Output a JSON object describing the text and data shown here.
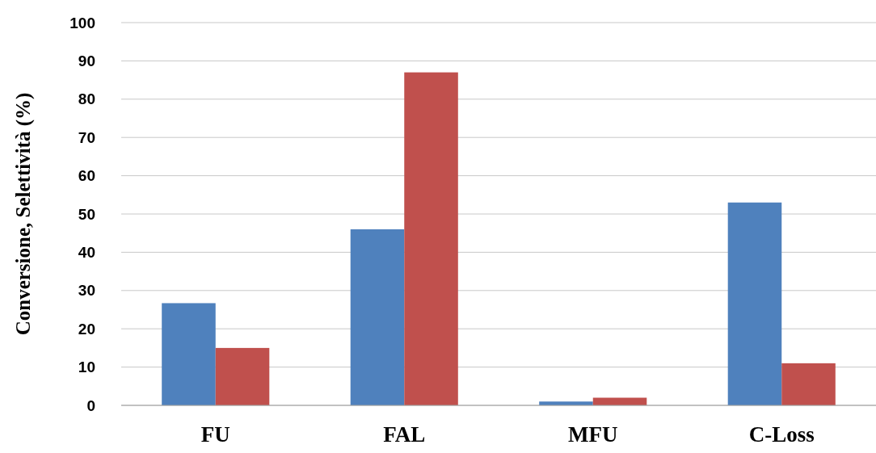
{
  "chart_data": {
    "type": "bar",
    "ylabel": "Conversione, Selettività (%)",
    "categories": [
      "FU",
      "FAL",
      "MFU",
      "C-Loss"
    ],
    "series": [
      {
        "color": "#4f81bd",
        "values": [
          26.7,
          46,
          1,
          53
        ]
      },
      {
        "color": "#c0504d",
        "values": [
          15,
          87,
          2,
          11
        ]
      }
    ],
    "ylim": [
      0,
      100
    ],
    "yticks": [
      0,
      10,
      20,
      30,
      40,
      50,
      60,
      70,
      80,
      90,
      100
    ],
    "grid": "y"
  }
}
